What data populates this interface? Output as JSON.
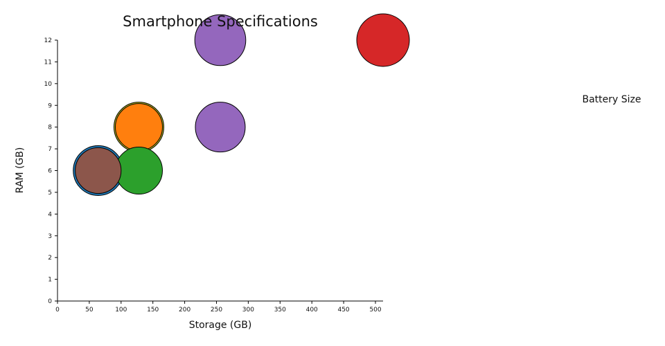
{
  "chart_data": {
    "type": "scatter",
    "title": "Smartphone Specifications",
    "xlabel": "Storage (GB)",
    "ylabel": "RAM (GB)",
    "legend_title": "Battery Size",
    "xlim": [
      0,
      512
    ],
    "ylim": [
      0,
      12
    ],
    "x_ticks": [
      0,
      50,
      100,
      150,
      200,
      250,
      300,
      350,
      400,
      450,
      500
    ],
    "y_ticks": [
      0,
      1,
      2,
      3,
      4,
      5,
      6,
      7,
      8,
      9,
      10,
      11,
      12
    ],
    "grid": false,
    "bubble_size_encodes": "battery size",
    "points": [
      {
        "x": 64,
        "y": 6,
        "size": 4500,
        "color": "#1f77b4"
      },
      {
        "x": 128,
        "y": 8,
        "size": 4500,
        "color": "#bcbd22"
      },
      {
        "x": 128,
        "y": 8,
        "size": 4000,
        "color": "#ff7f0e"
      },
      {
        "x": 128,
        "y": 6,
        "size": 4000,
        "color": "#2ca02c"
      },
      {
        "x": 512,
        "y": 12,
        "size": 5000,
        "color": "#d62728"
      },
      {
        "x": 256,
        "y": 12,
        "size": 4700,
        "color": "#9467bd"
      },
      {
        "x": 256,
        "y": 8,
        "size": 4500,
        "color": "#9467bd"
      },
      {
        "x": 64,
        "y": 6,
        "size": 3800,
        "color": "#8c564b"
      }
    ]
  }
}
